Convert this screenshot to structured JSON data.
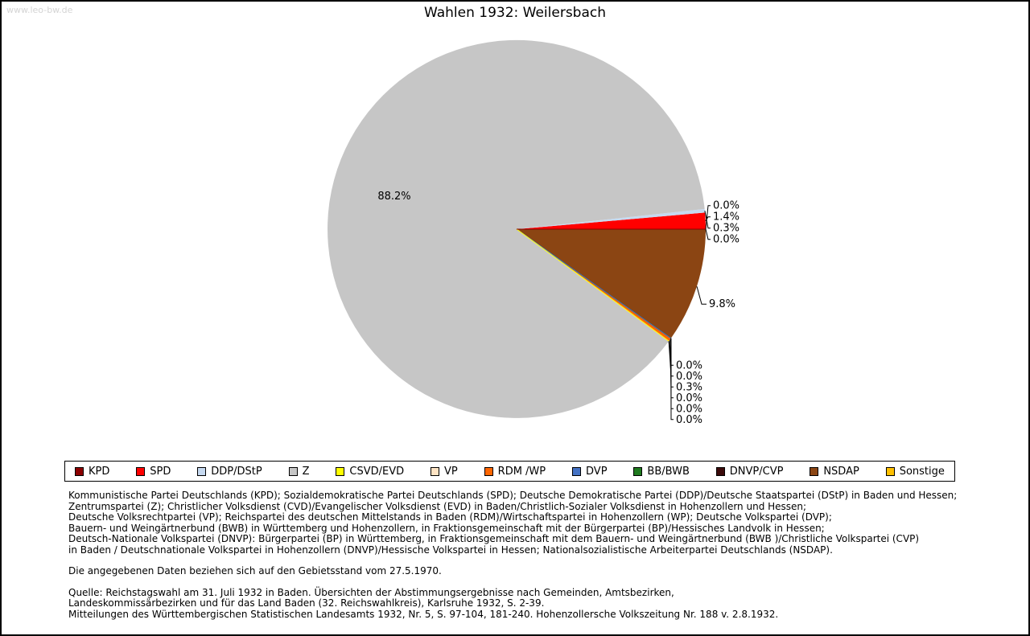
{
  "watermark": "www.leo-bw.de",
  "chart_data": {
    "type": "pie",
    "title": "Wahlen 1932: Weilersbach",
    "unit": "%",
    "legend_position": "bottom",
    "start_angle_deg": 0,
    "direction": "counterclockwise",
    "series": [
      {
        "label": "KPD",
        "value": 0.0,
        "color": "#8B0000"
      },
      {
        "label": "SPD",
        "value": 1.4,
        "color": "#FF0000"
      },
      {
        "label": "DDP/DStP",
        "value": 0.3,
        "color": "#C6D9F0"
      },
      {
        "label": "Z",
        "value": 88.2,
        "color": "#C6C6C6"
      },
      {
        "label": "CSVD/EVD",
        "value": 0.0,
        "color": "#FFFF00"
      },
      {
        "label": "VP",
        "value": 0.0,
        "color": "#FFE4C4"
      },
      {
        "label": "RDM /WP",
        "value": 0.3,
        "color": "#FF6600"
      },
      {
        "label": "DVP",
        "value": 0.0,
        "color": "#4472C4"
      },
      {
        "label": "BB/BWB",
        "value": 0.0,
        "color": "#1F7A1F"
      },
      {
        "label": "DNVP/CVP",
        "value": 0.0,
        "color": "#3B0A0A"
      },
      {
        "label": "NSDAP",
        "value": 9.8,
        "color": "#8B4513"
      },
      {
        "label": "Sonstige",
        "value": 0.0,
        "color": "#FFC000"
      }
    ]
  },
  "notes": {
    "party_lines": [
      "Kommunistische Partei Deutschlands (KPD); Sozialdemokratische Partei Deutschlands (SPD); Deutsche Demokratische Partei (DDP)/Deutsche Staatspartei (DStP) in Baden und Hessen;",
      "Zentrumspartei (Z); Christlicher Volksdienst (CVD)/Evangelischer Volksdienst (EVD) in Baden/Christlich-Sozialer Volksdienst in Hohenzollern und Hessen;",
      "Deutsche Volksrechtpartei (VP); Reichspartei des deutschen Mittelstands in Baden (RDM)/Wirtschaftspartei in Hohenzollern (WP); Deutsche Volkspartei (DVP);",
      "Bauern- und Weingärtnerbund (BWB) in Württemberg und Hohenzollern, in Fraktionsgemeinschaft mit der Bürgerpartei (BP)/Hessisches Landvolk in Hessen;",
      "Deutsch-Nationale Volkspartei (DNVP): Bürgerpartei (BP) in Württemberg, in Fraktionsgemeinschaft mit dem Bauern- und Weingärtnerbund (BWB )/Christliche Volkspartei (CVP)",
      "in Baden / Deutschnationale Volkspartei in Hohenzollern (DNVP)/Hessische Volkspartei in Hessen; Nationalsozialistische Arbeiterpartei Deutschlands (NSDAP)."
    ],
    "basis_lines": [
      "Die angegebenen Daten beziehen sich auf den Gebietsstand vom 27.5.1970."
    ],
    "source_lines": [
      "Quelle: Reichstagswahl am 31. Juli 1932 in Baden. Übersichten der Abstimmungsergebnisse nach Gemeinden, Amtsbezirken,",
      "Landeskommissärbezirken und für das Land Baden (32. Reichswahlkreis), Karlsruhe 1932, S. 2-39.",
      "Mitteilungen des Württembergischen Statistischen Landesamts 1932, Nr. 5, S. 97-104, 181-240. Hohenzollersche Volkszeitung Nr. 188 v. 2.8.1932."
    ]
  }
}
